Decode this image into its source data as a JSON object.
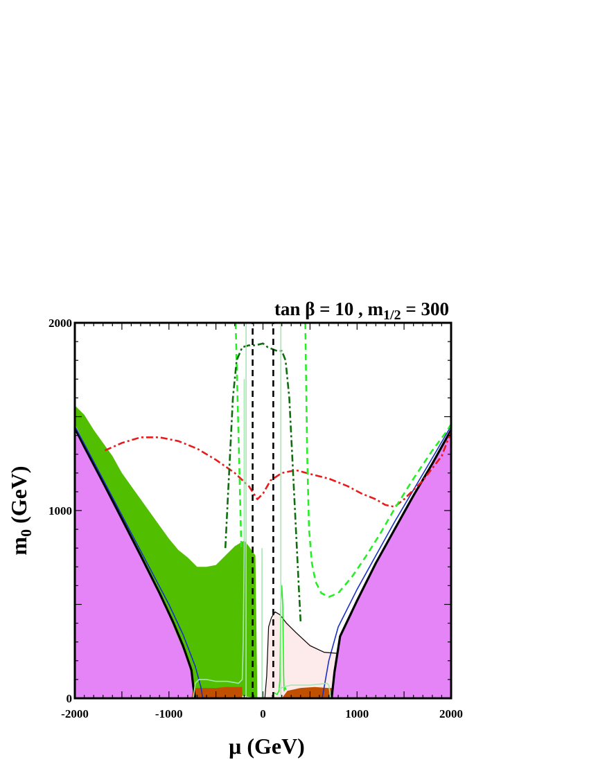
{
  "chart_data": {
    "type": "line",
    "title": {
      "lhs": "tan β = 10 ,  m",
      "sub": "1/2",
      "rhs": " = 300"
    },
    "xlabel": "μ (GeV)",
    "ylabel": {
      "main": "m",
      "sub": "0",
      "unit": " (GeV)"
    },
    "xlim": [
      -2000,
      2000
    ],
    "ylim": [
      0,
      2000
    ],
    "x_ticks": [
      {
        "value": -2000,
        "label": "-2000"
      },
      {
        "value": -1000,
        "label": "-1000"
      },
      {
        "value": 0,
        "label": "0"
      },
      {
        "value": 1000,
        "label": "1000"
      },
      {
        "value": 2000,
        "label": "2000"
      }
    ],
    "y_ticks": [
      {
        "value": 0,
        "label": "0"
      },
      {
        "value": 1000,
        "label": "1000"
      },
      {
        "value": 2000,
        "label": "2000"
      }
    ],
    "colors": {
      "excluded_region": "#e484f6",
      "wmap_band": "#52be00",
      "stau_region": "#c05000",
      "chargino_region": "#fdeaea",
      "boundary": "#000000",
      "blue_curve": "#1a2ec8",
      "red_dashdot": "#e81a1a",
      "green_dashed": "#26ee26",
      "darkgreen_dashdot": "#0e6e0e",
      "pale_green": "#a6e6b0",
      "black_dashed": "#000000"
    },
    "regions": {
      "excluded_left": {
        "x": [
          -2000,
          -1900,
          -1700,
          -1500,
          -1300,
          -1100,
          -950,
          -850,
          -760,
          -740,
          -720,
          -700,
          -2000
        ],
        "y": [
          1440,
          1340,
          1150,
          955,
          760,
          560,
          400,
          280,
          150,
          60,
          0,
          0,
          0
        ]
      },
      "excluded_right": {
        "x": [
          730,
          760,
          820,
          1000,
          1200,
          1400,
          1600,
          1800,
          2000,
          2000
        ],
        "y": [
          0,
          140,
          330,
          520,
          720,
          900,
          1080,
          1250,
          1430,
          0
        ]
      },
      "stau_left": {
        "x": [
          -760,
          -740,
          -600,
          -500,
          -400,
          -300,
          -220,
          -220,
          -760
        ],
        "y": [
          0,
          55,
          55,
          55,
          60,
          60,
          60,
          0,
          0
        ]
      },
      "stau_right": {
        "x": [
          200,
          260,
          400,
          550,
          690,
          730,
          730,
          200
        ],
        "y": [
          0,
          40,
          55,
          60,
          55,
          55,
          0,
          0
        ]
      },
      "chargino_region": {
        "x": [
          20,
          60,
          130,
          200,
          300,
          450,
          600,
          780,
          780,
          690,
          20
        ],
        "y": [
          0,
          380,
          460,
          440,
          380,
          310,
          255,
          240,
          0,
          0,
          0
        ]
      },
      "wmap_band": {
        "upper": {
          "x": [
            -2000,
            -1900,
            -1800,
            -1700,
            -1600,
            -1500,
            -1400,
            -1300,
            -1200,
            -1100,
            -1000,
            -900,
            -800,
            -700,
            -600,
            -500,
            -400,
            -300,
            -200,
            -150,
            -80,
            -60
          ],
          "y": [
            1560,
            1510,
            1430,
            1360,
            1290,
            1200,
            1130,
            1060,
            990,
            920,
            850,
            790,
            750,
            700,
            700,
            710,
            760,
            810,
            840,
            810,
            760,
            0
          ]
        },
        "lower": {
          "x": [
            -2000,
            -1900,
            -1800,
            -1700,
            -1600,
            -1500,
            -1400,
            -1300,
            -1200,
            -1100,
            -1000,
            -900,
            -800,
            -760,
            -740,
            -60
          ],
          "y": [
            1460,
            1360,
            1260,
            1160,
            1060,
            960,
            860,
            760,
            660,
            560,
            440,
            320,
            200,
            120,
            55,
            0
          ]
        }
      }
    },
    "series": [
      {
        "style": "thick-solid",
        "color": "boundary",
        "x": [
          -2000,
          -1900,
          -1700,
          -1500,
          -1300,
          -1100,
          -950,
          -850,
          -760,
          -740,
          -720
        ],
        "y": [
          1440,
          1340,
          1150,
          955,
          760,
          560,
          400,
          280,
          150,
          60,
          0
        ]
      },
      {
        "style": "thick-solid",
        "color": "boundary",
        "x": [
          730,
          760,
          820,
          1000,
          1200,
          1400,
          1600,
          1800,
          2000
        ],
        "y": [
          0,
          140,
          330,
          520,
          720,
          900,
          1080,
          1250,
          1430
        ]
      },
      {
        "style": "solid",
        "color": "blue_curve",
        "x": [
          -2000,
          -1800,
          -1600,
          -1400,
          -1200,
          -1000,
          -850,
          -720,
          -660,
          -640
        ],
        "y": [
          1450,
          1260,
          1070,
          880,
          690,
          500,
          340,
          170,
          60,
          0
        ]
      },
      {
        "style": "solid",
        "color": "blue_curve",
        "x": [
          630,
          700,
          800,
          1000,
          1200,
          1400,
          1600,
          1800,
          2000
        ],
        "y": [
          0,
          200,
          380,
          580,
          760,
          940,
          1110,
          1280,
          1450
        ]
      },
      {
        "style": "thin-solid",
        "color": "boundary",
        "x": [
          20,
          40,
          60,
          90,
          130,
          180,
          250,
          350,
          500,
          650,
          780
        ],
        "y": [
          0,
          120,
          380,
          430,
          460,
          445,
          400,
          350,
          280,
          245,
          240
        ]
      },
      {
        "style": "dashdot",
        "color": "red_dashdot",
        "x": [
          -1680,
          -1500,
          -1300,
          -1100,
          -900,
          -700,
          -500,
          -300,
          -150,
          -60,
          0,
          80,
          200,
          350,
          500,
          700,
          900,
          1050,
          1200,
          1300,
          1400,
          1500,
          1700,
          1900,
          2000
        ],
        "y": [
          1320,
          1360,
          1390,
          1390,
          1370,
          1330,
          1270,
          1200,
          1130,
          1060,
          1090,
          1160,
          1200,
          1215,
          1195,
          1170,
          1130,
          1090,
          1060,
          1030,
          1020,
          1060,
          1160,
          1290,
          1420
        ]
      },
      {
        "style": "dashed",
        "color": "green_dashed",
        "x": [
          -290,
          -270,
          -250,
          -230
        ],
        "y": [
          2000,
          1600,
          1200,
          800
        ]
      },
      {
        "style": "dashed",
        "color": "green_dashed",
        "x": [
          450,
          470,
          490,
          520,
          560,
          620,
          700,
          800,
          950,
          1100,
          1250,
          1400,
          1600,
          1800,
          1950,
          2000
        ],
        "y": [
          2000,
          1300,
          900,
          720,
          620,
          560,
          540,
          560,
          650,
          760,
          880,
          1010,
          1170,
          1320,
          1420,
          1460
        ]
      },
      {
        "style": "dashdot",
        "color": "darkgreen_dashdot",
        "x": [
          -400,
          -380,
          -350,
          -320,
          -280,
          -220,
          -150,
          -80,
          0,
          50,
          100,
          150,
          200,
          240,
          280,
          310,
          340,
          360,
          380,
          400
        ],
        "y": [
          800,
          1000,
          1300,
          1600,
          1800,
          1870,
          1880,
          1880,
          1890,
          1870,
          1860,
          1850,
          1850,
          1800,
          1600,
          1300,
          1000,
          800,
          600,
          410
        ]
      },
      {
        "style": "solid",
        "color": "green_dashed",
        "x": [
          120,
          150,
          170,
          180,
          185,
          190,
          200,
          210,
          215,
          220,
          225,
          235,
          245
        ],
        "y": [
          30,
          20,
          40,
          100,
          300,
          520,
          600,
          500,
          300,
          120,
          40,
          60,
          45
        ]
      },
      {
        "style": "solid",
        "color": "pale_green",
        "x": [
          -740,
          -720,
          -680,
          -600,
          -500,
          -380,
          -260,
          -220,
          -210,
          -200,
          -200
        ],
        "y": [
          0,
          80,
          100,
          100,
          90,
          90,
          80,
          100,
          300,
          800,
          1700
        ]
      },
      {
        "style": "solid",
        "color": "pale_green",
        "x": [
          -180,
          -180
        ],
        "y": [
          0,
          2000
        ]
      },
      {
        "style": "solid",
        "color": "pale_green",
        "x": [
          -10,
          -10
        ],
        "y": [
          0,
          800
        ]
      },
      {
        "style": "solid",
        "color": "pale_green",
        "x": [
          190,
          190
        ],
        "y": [
          0,
          2000
        ]
      },
      {
        "style": "solid",
        "color": "pale_green",
        "x": [
          170,
          220,
          300,
          400,
          500,
          600,
          680,
          700,
          720
        ],
        "y": [
          50,
          60,
          70,
          70,
          70,
          75,
          80,
          70,
          0
        ]
      },
      {
        "style": "dashed",
        "color": "black_dashed",
        "x": [
          -110,
          -110
        ],
        "y": [
          0,
          2000
        ]
      },
      {
        "style": "dashed",
        "color": "black_dashed",
        "x": [
          110,
          110
        ],
        "y": [
          0,
          2000
        ]
      }
    ]
  }
}
